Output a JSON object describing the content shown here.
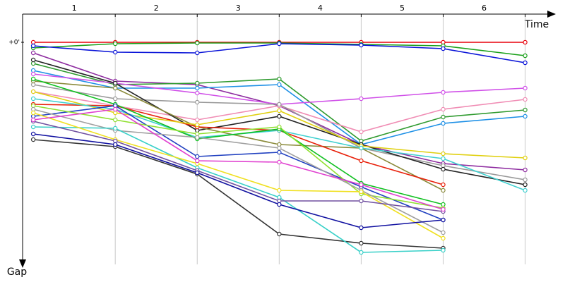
{
  "chart_data": {
    "type": "line",
    "x_label": "Time",
    "y_label": "Gap",
    "lap_labels": [
      1,
      2,
      3,
      4,
      5,
      6
    ],
    "x": [
      0,
      1,
      2,
      3,
      4,
      5,
      6
    ],
    "xlim": [
      -0.13,
      6.4
    ],
    "xticks": [
      1,
      2,
      3,
      4,
      5,
      6
    ],
    "ylim": [
      -40,
      315
    ],
    "yticks": [
      {
        "value": 0,
        "label": "+0'"
      }
    ],
    "grid": true,
    "series": [
      {
        "color": "#e8000b",
        "values": [
          0,
          0,
          0,
          0,
          0,
          0,
          0
        ]
      },
      {
        "color": "#1aa01a",
        "values": [
          8,
          2,
          1,
          1,
          3,
          5,
          19
        ]
      },
      {
        "color": "#0a14d8",
        "values": [
          5,
          14,
          15,
          2,
          4,
          9,
          29
        ]
      },
      {
        "color": "#8e2ca0",
        "values": [
          15,
          55,
          60,
          90,
          145,
          172,
          181
        ]
      },
      {
        "color": "#2e9a2e",
        "values": [
          30,
          60,
          58,
          52,
          140,
          106,
          96
        ]
      },
      {
        "color": "#1e90e6",
        "values": [
          40,
          65,
          65,
          60,
          145,
          115,
          105
        ]
      },
      {
        "color": "#d050e8",
        "values": [
          45,
          58,
          72,
          88,
          80,
          71,
          65
        ]
      },
      {
        "color": "#f08cb4",
        "values": [
          70,
          90,
          110,
          90,
          127,
          95,
          81
        ]
      },
      {
        "color": "#999999",
        "values": [
          60,
          80,
          85,
          88,
          150,
          175,
          195
        ]
      },
      {
        "color": "#222222",
        "values": [
          25,
          58,
          125,
          105,
          145,
          180,
          202
        ]
      },
      {
        "color": "#8a8a3a",
        "values": [
          55,
          65,
          120,
          145,
          150,
          210,
          null
        ]
      },
      {
        "color": "#e8200a",
        "values": [
          88,
          90,
          120,
          125,
          168,
          202,
          null
        ]
      },
      {
        "color": "#e0d010",
        "values": [
          70,
          100,
          117,
          97,
          147,
          158,
          164
        ]
      },
      {
        "color": "#40d0d0",
        "values": [
          80,
          95,
          135,
          125,
          150,
          165,
          210
        ]
      },
      {
        "color": "#10c020",
        "values": [
          52,
          88,
          137,
          123,
          200,
          230,
          null
        ]
      },
      {
        "color": "#2040c0",
        "values": [
          105,
          90,
          162,
          156,
          205,
          252,
          null
        ]
      },
      {
        "color": "#90e030",
        "values": [
          90,
          110,
          130,
          120,
          215,
          235,
          null
        ]
      },
      {
        "color": "#a0a0a0",
        "values": [
          95,
          125,
          135,
          150,
          210,
          270,
          null
        ]
      },
      {
        "color": "#333333",
        "values": [
          138,
          148,
          187,
          272,
          285,
          292,
          null
        ]
      },
      {
        "color": "#38d0c8",
        "values": [
          120,
          122,
          178,
          220,
          298,
          295,
          null
        ]
      },
      {
        "color": "#f0e020",
        "values": [
          100,
          138,
          172,
          210,
          212,
          278,
          null
        ]
      },
      {
        "color": "#7050a0",
        "values": [
          112,
          140,
          182,
          225,
          225,
          240,
          null
        ]
      },
      {
        "color": "#1010a0",
        "values": [
          130,
          145,
          185,
          230,
          263,
          252,
          null
        ]
      },
      {
        "color": "#e040d0",
        "values": [
          110,
          95,
          168,
          170,
          202,
          237,
          null
        ]
      }
    ]
  }
}
